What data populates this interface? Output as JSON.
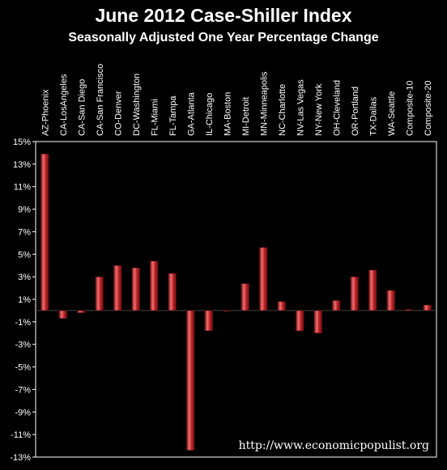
{
  "chart_data": {
    "type": "bar",
    "title": "June 2012 Case-Shiller Index",
    "subtitle": "Seasonally Adjusted One Year Percentage Change",
    "categories": [
      "AZ-Phoenix",
      "CA-LosAngeles",
      "CA-San Diego",
      "CA-San Francisco",
      "CO-Denver",
      "DC-Washington",
      "FL-Miami",
      "FL-Tampa",
      "GA-Atlanta",
      "IL-Chicago",
      "MA-Boston",
      "MI-Detroit",
      "MN-Minneapolis",
      "NC-Charlotte",
      "NV-Las Vegas",
      "NY-New York",
      "OH-Cleveland",
      "OR-Portland",
      "TX-Dallas",
      "WA-Seattle",
      "Composite-10",
      "Composite-20"
    ],
    "values": [
      13.9,
      -0.7,
      -0.2,
      3.0,
      4.0,
      3.8,
      4.4,
      3.3,
      -12.4,
      -1.8,
      0.0,
      2.4,
      5.6,
      0.8,
      -1.8,
      -2.0,
      0.9,
      3.0,
      3.6,
      1.8,
      0.1,
      0.5
    ],
    "ytick_labels": [
      "15%",
      "13%",
      "11%",
      "9%",
      "7%",
      "5%",
      "3%",
      "1%",
      "-1%",
      "-3%",
      "-5%",
      "-7%",
      "-9%",
      "-11%",
      "-13%"
    ],
    "ytick_values": [
      15,
      13,
      11,
      9,
      7,
      5,
      3,
      1,
      -1,
      -3,
      -5,
      -7,
      -9,
      -11,
      -13
    ],
    "ylim": [
      -13,
      15
    ],
    "xlabel": "",
    "ylabel": "",
    "legend": "none",
    "grid": false,
    "colors": {
      "bar": "#c0282c",
      "bar_highlight": "#f07070",
      "bar_shadow": "#6a0c0e",
      "plot_border": "#ffffff",
      "background": "#000000",
      "text": "#ffffff"
    },
    "credit": "http://www.economicpopulist.org"
  }
}
